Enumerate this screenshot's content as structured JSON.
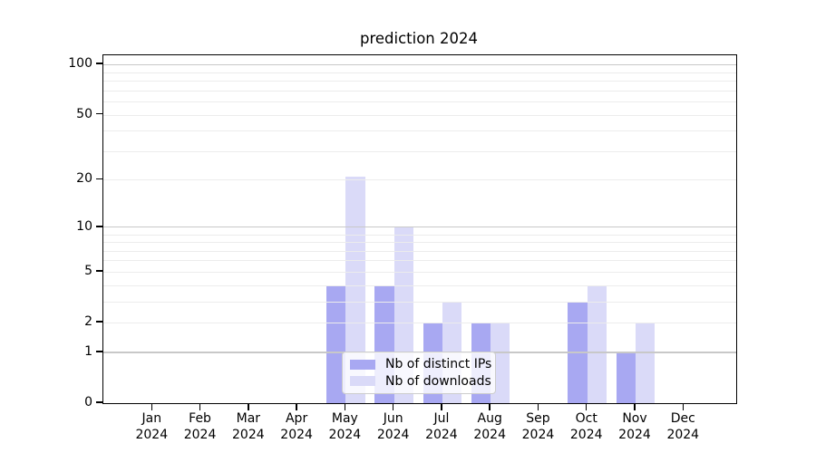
{
  "chart_data": {
    "type": "bar",
    "title": "prediction 2024",
    "categories": [
      "Jan",
      "Feb",
      "Mar",
      "Apr",
      "May",
      "Jun",
      "Jul",
      "Aug",
      "Sep",
      "Oct",
      "Nov",
      "Dec"
    ],
    "year_label": "2024",
    "series": [
      {
        "key": "distinct-ips",
        "name": "Nb of distinct IPs",
        "color": "#a8a8f2",
        "values": [
          0,
          0,
          0,
          0,
          4,
          4,
          2,
          2,
          0,
          3,
          1,
          0
        ]
      },
      {
        "key": "downloads",
        "name": "Nb of downloads",
        "color": "#dadaf8",
        "values": [
          0,
          0,
          0,
          0,
          21,
          10,
          3,
          2,
          0,
          4,
          2,
          0
        ]
      }
    ],
    "xlabel": "",
    "ylabel": "",
    "yscale": "log1p",
    "ylim": [
      0,
      113.6
    ],
    "ytick_labels": [
      "0",
      "1",
      "2",
      "5",
      "10",
      "20",
      "50",
      "100"
    ],
    "ytick_values": [
      0,
      1,
      2,
      5,
      10,
      20,
      50,
      100
    ],
    "major_gridline_values": [
      1,
      10,
      100
    ],
    "minor_gridline_values": [
      2,
      3,
      4,
      5,
      6,
      7,
      8,
      9,
      20,
      30,
      40,
      50,
      60,
      70,
      80,
      90
    ],
    "grid": "horizontal",
    "legend_position": "lower-center"
  },
  "colors": {
    "major_grid": "#c8c8c8",
    "minor_grid": "#ececec",
    "axis": "#000000",
    "text": "#000000"
  }
}
